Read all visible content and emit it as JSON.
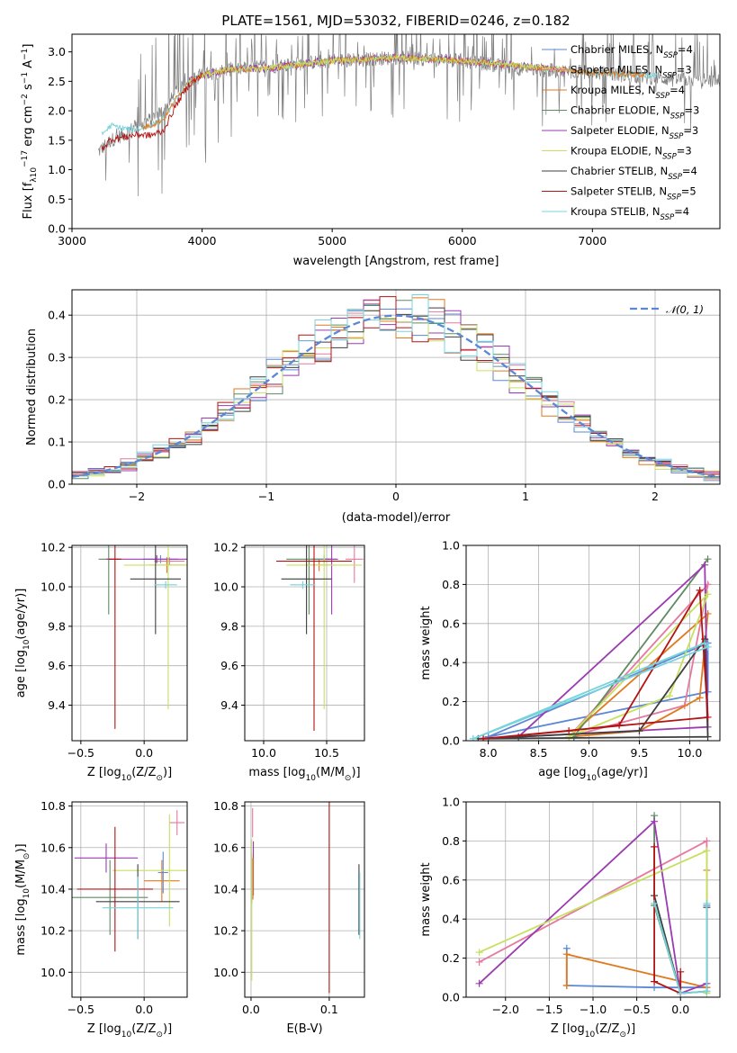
{
  "figure": {
    "title": "PLATE=1561, MJD=53032, FIBERID=0246, z=0.182"
  },
  "colors": {
    "Chabrier MILES": "#5b87d6",
    "Salpeter MILES": "#e6799e",
    "Kroupa MILES": "#e07a1f",
    "Chabrier ELODIE": "#5f8a62",
    "Salpeter ELODIE": "#9b3bb0",
    "Kroupa ELODIE": "#c6e060",
    "Chabrier STELIB": "#3f3f3f",
    "Salpeter STELIB": "#b31313",
    "Kroupa STELIB": "#76d3dc",
    "data": "#808080",
    "normal": "#5b87d6"
  },
  "chart_data": [
    {
      "id": "spectrum",
      "type": "line",
      "title": "PLATE=1561, MJD=53032, FIBERID=0246, z=0.182",
      "xlabel": "wavelength [Angstrom, rest frame]",
      "ylabel_parts": [
        "Flux [f",
        "λ",
        "10",
        "−17",
        " erg cm",
        "−2",
        " s",
        "−1",
        " A",
        "−1",
        "]"
      ],
      "xlim": [
        3000,
        7980
      ],
      "ylim": [
        0,
        3.3
      ],
      "xticks": [
        3000,
        4000,
        5000,
        6000,
        7000
      ],
      "yticks": [
        0.0,
        0.5,
        1.0,
        1.5,
        2.0,
        2.5,
        3.0
      ],
      "grid": false,
      "legend_position": "right",
      "legend": [
        {
          "name": "Chabrier MILES",
          "nssp": "4"
        },
        {
          "name": "Salpeter MILES",
          "nssp": "3"
        },
        {
          "name": "Kroupa MILES",
          "nssp": "4"
        },
        {
          "name": "Chabrier ELODIE",
          "nssp": "3"
        },
        {
          "name": "Salpeter ELODIE",
          "nssp": "3"
        },
        {
          "name": "Kroupa ELODIE",
          "nssp": "3"
        },
        {
          "name": "Chabrier STELIB",
          "nssp": "4"
        },
        {
          "name": "Salpeter STELIB",
          "nssp": "5"
        },
        {
          "name": "Kroupa STELIB",
          "nssp": "4"
        }
      ],
      "series": [
        {
          "name": "data",
          "x": [
            3200,
            3300,
            3400,
            3500,
            3600,
            3700,
            3800,
            3900,
            4000,
            4200,
            4500,
            5000,
            5500,
            6000,
            6500,
            7000,
            7500,
            7980
          ],
          "values": [
            1.3,
            1.5,
            1.6,
            1.75,
            1.85,
            2.0,
            2.3,
            2.5,
            2.6,
            2.7,
            2.75,
            2.85,
            2.9,
            2.85,
            2.7,
            2.65,
            2.55,
            2.5
          ]
        },
        {
          "name": "Kroupa STELIB model",
          "x": [
            3230,
            3300,
            3400,
            3500,
            3600,
            3700,
            3800,
            3900,
            4000,
            4200,
            4500,
            5000,
            5500,
            6000,
            6500,
            7000,
            7500
          ],
          "values": [
            1.6,
            1.75,
            1.7,
            1.68,
            1.75,
            1.85,
            2.2,
            2.5,
            2.6,
            2.7,
            2.72,
            2.85,
            2.9,
            2.85,
            2.75,
            2.65,
            2.6
          ]
        },
        {
          "name": "Salpeter STELIB model",
          "x": [
            3230,
            3300,
            3400,
            3500,
            3600,
            3700,
            3800,
            3900,
            4000
          ],
          "values": [
            1.35,
            1.52,
            1.55,
            1.6,
            1.58,
            1.65,
            2.1,
            2.45,
            2.6
          ]
        }
      ]
    },
    {
      "id": "residuals",
      "type": "line",
      "xlabel": "(data-model)/error",
      "ylabel": "Normed distribution",
      "xlim": [
        -2.5,
        2.5
      ],
      "ylim": [
        0,
        0.46
      ],
      "xticks": [
        -2,
        -1,
        0,
        1,
        2
      ],
      "yticks": [
        0.0,
        0.1,
        0.2,
        0.3,
        0.4
      ],
      "grid": true,
      "legend_position": "top-right",
      "legend_label": "𝒩(0, 1)",
      "series_note": "step histograms, one per model (9 models), plus dashed standard normal curve"
    },
    {
      "id": "age_vs_Z",
      "type": "scatter",
      "xlabel_parts": [
        "Z [log",
        "10",
        "(Z/Z",
        "⊙",
        ")]"
      ],
      "ylabel_parts": [
        "age  [log",
        "10",
        "(age/yr)]"
      ],
      "xlim": [
        -0.57,
        0.34
      ],
      "ylim": [
        9.22,
        10.21
      ],
      "xticks": [
        -0.5,
        0.0,
        0.5
      ],
      "xtick_labels": [
        "−0.5",
        "0.0",
        ""
      ],
      "yticks": [
        9.4,
        9.6,
        9.8,
        10.0,
        10.2
      ],
      "grid": true,
      "points": [
        {
          "series": "Chabrier MILES",
          "x": 0.13,
          "y": 10.14,
          "xerr": 0.14,
          "yerr": 0.02
        },
        {
          "series": "Salpeter MILES",
          "x": 0.2,
          "y": 10.13,
          "xerr": 0.12,
          "yerr": 0.02
        },
        {
          "series": "Kroupa MILES",
          "x": 0.18,
          "y": 10.11,
          "xerr": 0.14,
          "yerr": 0.04
        },
        {
          "series": "Chabrier ELODIE",
          "x": -0.28,
          "y": 10.14,
          "xerr": 0.08,
          "yerr": 0.28
        },
        {
          "series": "Salpeter ELODIE",
          "x": 0.1,
          "y": 10.14,
          "xerr": 0.4,
          "yerr": 0.02
        },
        {
          "series": "Kroupa ELODIE",
          "x": 0.19,
          "y": 10.11,
          "xerr": 0.35,
          "yerr": 0.73
        },
        {
          "series": "Chabrier STELIB",
          "x": 0.09,
          "y": 10.04,
          "xerr": 0.2,
          "yerr": 0.28
        },
        {
          "series": "Salpeter STELIB",
          "x": -0.23,
          "y": 10.14,
          "xerr": 0.05,
          "yerr": 0.86
        },
        {
          "series": "Kroupa STELIB",
          "x": 0.17,
          "y": 10.01,
          "xerr": 0.09,
          "yerr": 0.02
        }
      ]
    },
    {
      "id": "age_vs_mass",
      "type": "scatter",
      "xlabel_parts": [
        "mass [log",
        "10",
        "(M/M",
        "⊙",
        ")]"
      ],
      "xlim": [
        9.85,
        10.8
      ],
      "ylim": [
        9.22,
        10.21
      ],
      "xticks": [
        10.0,
        10.5
      ],
      "yticks": [
        9.4,
        9.6,
        9.8,
        10.0,
        10.2
      ],
      "grid": true,
      "points": [
        {
          "series": "Chabrier MILES",
          "x": 10.48,
          "y": 10.14,
          "xerr": 0.1,
          "yerr": 0.02
        },
        {
          "series": "Salpeter MILES",
          "x": 10.72,
          "y": 10.14,
          "xerr": 0.07,
          "yerr": 0.12
        },
        {
          "series": "Kroupa MILES",
          "x": 10.44,
          "y": 10.11,
          "xerr": 0.1,
          "yerr": 0.03
        },
        {
          "series": "Chabrier ELODIE",
          "x": 10.36,
          "y": 10.14,
          "xerr": 0.18,
          "yerr": 0.28
        },
        {
          "series": "Salpeter ELODIE",
          "x": 10.54,
          "y": 10.14,
          "xerr": 0.05,
          "yerr": 0.28
        },
        {
          "series": "Kroupa ELODIE",
          "x": 10.48,
          "y": 10.11,
          "xerr": 0.3,
          "yerr": 0.73
        },
        {
          "series": "Chabrier STELIB",
          "x": 10.34,
          "y": 10.04,
          "xerr": 0.2,
          "yerr": 0.28
        },
        {
          "series": "Salpeter STELIB",
          "x": 10.4,
          "y": 10.13,
          "xerr": 0.3,
          "yerr": 0.86
        },
        {
          "series": "Kroupa STELIB",
          "x": 10.31,
          "y": 10.01,
          "xerr": 0.1,
          "yerr": 0.02
        }
      ]
    },
    {
      "id": "weight_vs_age",
      "type": "line",
      "xlabel_parts": [
        "age  [log",
        "10",
        "(age/yr)]"
      ],
      "ylabel": "mass weight",
      "xlim": [
        7.78,
        10.3
      ],
      "ylim": [
        0,
        1
      ],
      "xticks": [
        8.0,
        8.5,
        9.0,
        9.5,
        10.0
      ],
      "yticks": [
        0.0,
        0.2,
        0.4,
        0.6,
        0.8,
        1.0
      ],
      "grid": true,
      "series": [
        {
          "name": "Chabrier MILES",
          "x": [
            8.0,
            10.18,
            10.18,
            8.0
          ],
          "values": [
            0.02,
            0.5,
            0.25,
            0.02
          ]
        },
        {
          "name": "Salpeter MILES",
          "x": [
            8.8,
            9.95,
            10.18,
            8.8
          ],
          "values": [
            0.02,
            0.18,
            0.8,
            0.02
          ]
        },
        {
          "name": "Kroupa MILES",
          "x": [
            8.8,
            9.5,
            10.1,
            10.18,
            8.8
          ],
          "values": [
            0.02,
            0.05,
            0.22,
            0.65,
            0.02
          ]
        },
        {
          "name": "Chabrier ELODIE",
          "x": [
            8.85,
            10.18,
            8.85
          ],
          "values": [
            0.02,
            0.93,
            0.02
          ]
        },
        {
          "name": "Salpeter ELODIE",
          "x": [
            8.3,
            10.15,
            10.18,
            8.3
          ],
          "values": [
            0.02,
            0.9,
            0.07,
            0.02
          ]
        },
        {
          "name": "Kroupa ELODIE",
          "x": [
            8.8,
            9.8,
            10.18,
            8.8
          ],
          "values": [
            0.02,
            0.23,
            0.75,
            0.02
          ]
        },
        {
          "name": "Chabrier STELIB",
          "x": [
            7.9,
            9.5,
            10.15,
            10.18,
            7.9
          ],
          "values": [
            0.01,
            0.05,
            0.52,
            0.02,
            0.01
          ]
        },
        {
          "name": "Salpeter STELIB",
          "x": [
            7.95,
            8.8,
            9.3,
            10.1,
            10.18,
            7.95
          ],
          "values": [
            0.01,
            0.05,
            0.08,
            0.77,
            0.12,
            0.01
          ]
        },
        {
          "name": "Kroupa STELIB",
          "x": [
            7.85,
            10.15,
            10.18,
            7.85
          ],
          "values": [
            0.01,
            0.5,
            0.48,
            0.01
          ]
        }
      ]
    },
    {
      "id": "mass_vs_Z",
      "type": "scatter",
      "xlabel_parts": [
        "Z [log",
        "10",
        "(Z/Z",
        "⊙",
        ")]"
      ],
      "ylabel_parts": [
        "mass [log",
        "10",
        "(M/M",
        "⊙",
        ")]"
      ],
      "xlim": [
        -0.57,
        0.34
      ],
      "ylim": [
        9.88,
        10.82
      ],
      "xticks": [
        -0.5,
        0.0,
        0.5
      ],
      "xtick_labels": [
        "−0.5",
        "0.0",
        ""
      ],
      "yticks": [
        10.0,
        10.2,
        10.4,
        10.6,
        10.8
      ],
      "grid": true,
      "points": [
        {
          "series": "Chabrier MILES",
          "x": 0.15,
          "y": 10.48,
          "xerr": 0.04,
          "yerr": 0.1
        },
        {
          "series": "Salpeter MILES",
          "x": 0.26,
          "y": 10.72,
          "xerr": 0.06,
          "yerr": 0.06
        },
        {
          "series": "Kroupa MILES",
          "x": 0.14,
          "y": 10.44,
          "xerr": 0.14,
          "yerr": 0.1
        },
        {
          "series": "Chabrier ELODIE",
          "x": -0.27,
          "y": 10.36,
          "xerr": 0.3,
          "yerr": 0.18
        },
        {
          "series": "Salpeter ELODIE",
          "x": -0.3,
          "y": 10.55,
          "xerr": 0.25,
          "yerr": 0.07
        },
        {
          "series": "Kroupa ELODIE",
          "x": 0.2,
          "y": 10.49,
          "xerr": 0.45,
          "yerr": 0.27
        },
        {
          "series": "Chabrier STELIB",
          "x": -0.05,
          "y": 10.34,
          "xerr": 0.33,
          "yerr": 0.18
        },
        {
          "series": "Salpeter STELIB",
          "x": -0.23,
          "y": 10.4,
          "xerr": 0.3,
          "yerr": 0.3
        },
        {
          "series": "Kroupa STELIB",
          "x": -0.05,
          "y": 10.31,
          "xerr": 0.28,
          "yerr": 0.15
        }
      ]
    },
    {
      "id": "mass_vs_EBV",
      "type": "scatter",
      "xlabel": "E(B-V)",
      "xlim": [
        -0.008,
        0.145
      ],
      "ylim": [
        9.88,
        10.82
      ],
      "xticks": [
        0.0,
        0.1
      ],
      "yticks": [
        10.0,
        10.2,
        10.4,
        10.6,
        10.8
      ],
      "grid": true,
      "points": [
        {
          "series": "Salpeter MILES",
          "x": 0.002,
          "y": 10.72,
          "yerr": 0.07
        },
        {
          "series": "Chabrier ELODIE",
          "x": 0.001,
          "y": 10.45,
          "yerr": 0.12
        },
        {
          "series": "Salpeter ELODIE",
          "x": 0.003,
          "y": 10.5,
          "yerr": 0.13
        },
        {
          "series": "Kroupa ELODIE",
          "x": 0.001,
          "y": 10.3,
          "yerr": 0.34
        },
        {
          "series": "Kroupa MILES",
          "x": 0.0025,
          "y": 10.45,
          "yerr": 0.1
        },
        {
          "series": "Chabrier STELIB",
          "x": 0.138,
          "y": 10.35,
          "yerr": 0.17
        },
        {
          "series": "Salpeter STELIB",
          "x": 0.1,
          "y": 10.4,
          "yerr": 0.5
        },
        {
          "series": "Kroupa STELIB",
          "x": 0.139,
          "y": 10.32,
          "yerr": 0.16
        }
      ]
    },
    {
      "id": "weight_vs_Z",
      "type": "line",
      "xlabel_parts": [
        "Z [log",
        "10",
        "(Z/Z",
        "⊙",
        ")]"
      ],
      "ylabel": "mass weight",
      "xlim": [
        -2.45,
        0.45
      ],
      "ylim": [
        0,
        1
      ],
      "xticks": [
        -2.0,
        -1.5,
        -1.0,
        -0.5,
        0.0
      ],
      "xtick_labels": [
        "−2.0",
        "−1.5",
        "−1.0",
        "−0.5",
        "0.0"
      ],
      "yticks": [
        0.0,
        0.2,
        0.4,
        0.6,
        0.8,
        1.0
      ],
      "grid": true,
      "series": [
        {
          "name": "Chabrier MILES",
          "x": [
            -1.3,
            -1.3,
            -0.3,
            0.3,
            0.3
          ],
          "values": [
            0.25,
            0.06,
            0.05,
            0.05,
            0.47
          ]
        },
        {
          "name": "Salpeter MILES",
          "x": [
            -2.3,
            0.3,
            0.3
          ],
          "values": [
            0.18,
            0.8,
            0.05
          ]
        },
        {
          "name": "Kroupa MILES",
          "x": [
            -1.3,
            -1.3,
            0.3,
            0.3
          ],
          "values": [
            0.06,
            0.22,
            0.05,
            0.65
          ]
        },
        {
          "name": "Chabrier ELODIE",
          "x": [
            -0.3,
            -0.3,
            0.0
          ],
          "values": [
            0.93,
            0.47,
            0.02
          ]
        },
        {
          "name": "Salpeter ELODIE",
          "x": [
            -2.3,
            -0.3,
            0.0,
            0.3
          ],
          "values": [
            0.07,
            0.9,
            0.02,
            0.07
          ]
        },
        {
          "name": "Kroupa ELODIE",
          "x": [
            -2.3,
            0.3,
            0.3
          ],
          "values": [
            0.23,
            0.75,
            0.02
          ]
        },
        {
          "name": "Chabrier STELIB",
          "x": [
            -0.3,
            0.0,
            0.3,
            0.3
          ],
          "values": [
            0.52,
            0.02,
            0.03,
            0.46
          ]
        },
        {
          "name": "Salpeter STELIB",
          "x": [
            -0.3,
            -0.3,
            0.0,
            0.0
          ],
          "values": [
            0.77,
            0.08,
            0.02,
            0.13
          ]
        },
        {
          "name": "Kroupa STELIB",
          "x": [
            -0.3,
            0.0,
            0.3,
            0.3
          ],
          "values": [
            0.48,
            0.02,
            0.03,
            0.48
          ]
        }
      ]
    }
  ]
}
